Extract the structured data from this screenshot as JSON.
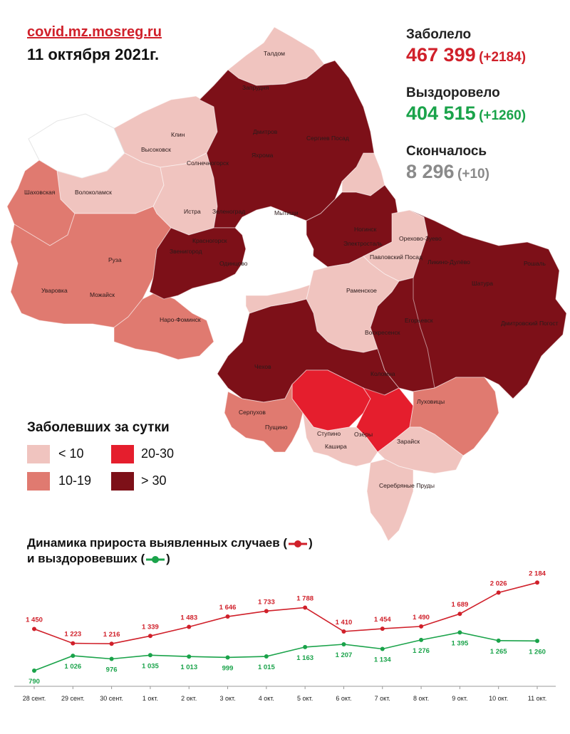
{
  "header": {
    "site": "covid.mz.mosreg.ru",
    "date": "11 октября 2021г."
  },
  "stats": {
    "infected": {
      "label": "Заболело",
      "value": "467 399",
      "delta": "(+2184)",
      "color": "#d0202a"
    },
    "recovered": {
      "label": "Выздоровело",
      "value": "404 515",
      "delta": "(+1260)",
      "color": "#1aa34a"
    },
    "deceased": {
      "label": "Скончалось",
      "value": "8 296",
      "delta": "(+10)",
      "color": "#8a8a8a"
    }
  },
  "map": {
    "town_labels": [
      "Талдом",
      "Запрудня",
      "Дмитров",
      "Сергиев Посад",
      "Клин",
      "Высоковск",
      "Яхрома",
      "Солнечногорск",
      "Шаховская",
      "Волоколамск",
      "Зеленоград",
      "Мытищи",
      "Истра",
      "Ногинск",
      "Орехово-Зуево",
      "Электросталь",
      "Красногорск",
      "Павловский Посад",
      "Звенигород",
      "Одинцово",
      "Ликино-Дулёво",
      "Руза",
      "Шатура",
      "Рошаль",
      "Уваровка",
      "Можайск",
      "Раменское",
      "Наро-Фоминск",
      "Егорьевск",
      "Воскресенск",
      "Дмитровский Погост",
      "Чехов",
      "Коломна",
      "Ступино",
      "Серпухов",
      "Пущино",
      "Озёры",
      "Луховицы",
      "Кашира",
      "Зарайск",
      "Серебряные Пруды"
    ],
    "category_colors": {
      "lt10": "#f0c4bf",
      "10-19": "#e07a70",
      "20-30": "#e51e2d",
      "gt30": "#7d1018",
      "excluded": "#ffffff"
    }
  },
  "legend": {
    "title": "Заболевших за сутки",
    "items": [
      {
        "label": "< 10",
        "color": "#f0c4bf"
      },
      {
        "label": "20-30",
        "color": "#e51e2d"
      },
      {
        "label": "10-19",
        "color": "#e07a70"
      },
      {
        "label": "> 30",
        "color": "#7d1018"
      }
    ]
  },
  "dynamics": {
    "title_line1": "Динамика прироста выявленных случаев (",
    "title_line1_end": ")",
    "title_line2": "и выздоровевших (",
    "title_line2_end": ")"
  },
  "chart_data": {
    "type": "line",
    "categories": [
      "28 сент.",
      "29 сент.",
      "30 сент.",
      "1 окт.",
      "2 окт.",
      "3 окт.",
      "4 окт.",
      "5 окт.",
      "6 окт.",
      "7 окт.",
      "8 окт.",
      "9 окт.",
      "10 окт.",
      "11 окт."
    ],
    "series": [
      {
        "color": "#d0202a",
        "values": [
          1450,
          1223,
          1216,
          1339,
          1483,
          1646,
          1733,
          1788,
          1410,
          1454,
          1490,
          1689,
          2026,
          2184
        ],
        "labels": [
          "1 450",
          "1 223",
          "1 216",
          "1 339",
          "1 483",
          "1 646",
          "1 733",
          "1 788",
          "1 410",
          "1 454",
          "1 490",
          "1 689",
          "2 026",
          "2 184"
        ]
      },
      {
        "color": "#1aa34a",
        "values": [
          790,
          1026,
          976,
          1035,
          1013,
          999,
          1015,
          1163,
          1207,
          1134,
          1276,
          1395,
          1265,
          1260
        ],
        "labels": [
          "790",
          "1 026",
          "976",
          "1 035",
          "1 013",
          "999",
          "1 015",
          "1 163",
          "1 207",
          "1 134",
          "1 276",
          "1 395",
          "1 265",
          "1 260"
        ]
      }
    ]
  }
}
